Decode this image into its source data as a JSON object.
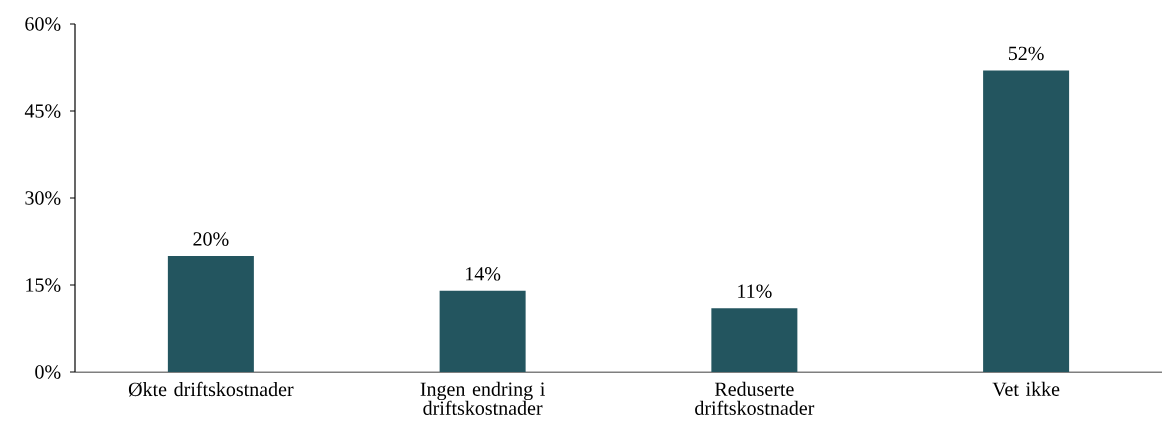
{
  "chart_data": {
    "type": "bar",
    "categories": [
      "Økte driftskostnader",
      "Ingen endring i driftskostnader",
      "Reduserte driftskostnader",
      "Vet ikke"
    ],
    "values": [
      20,
      14,
      11,
      52
    ],
    "value_labels": [
      "20%",
      "14%",
      "11%",
      "52%"
    ],
    "color": "#23555f",
    "ylim": [
      0,
      60
    ],
    "yticks": [
      {
        "value": 0,
        "label": "0%"
      },
      {
        "value": 15,
        "label": "15%"
      },
      {
        "value": 30,
        "label": "30%"
      },
      {
        "value": 45,
        "label": "45%"
      },
      {
        "value": 60,
        "label": "60%"
      }
    ],
    "grid": false
  }
}
